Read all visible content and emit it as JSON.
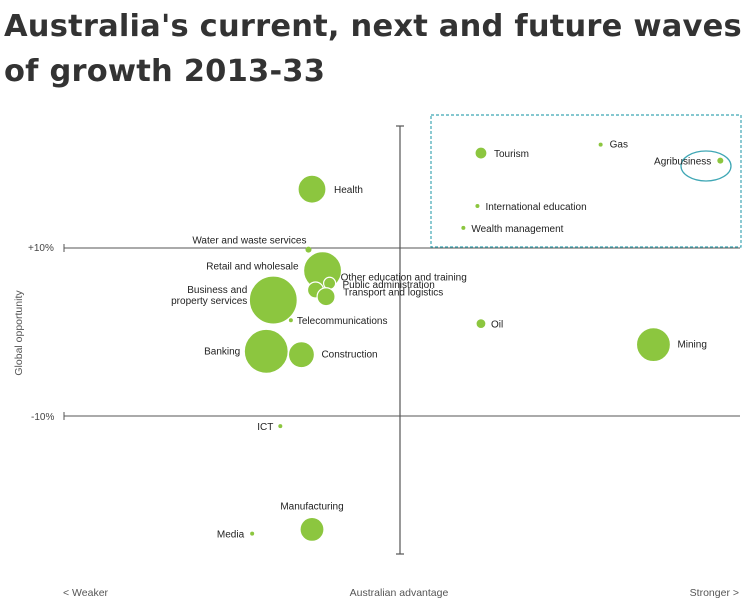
{
  "title": "Australia's current, next and future waves of growth 2013-33",
  "chart_data": {
    "type": "scatter",
    "title": "Australia's current, next and future waves of growth 2013-33",
    "xlabel": "Australian advantage",
    "ylabel": "Global opportunity",
    "x_left_label": "< Weaker",
    "x_right_label": "Stronger >",
    "yticks": [
      {
        "label": "+10%",
        "value": 10
      },
      {
        "label": "-10%",
        "value": -10
      }
    ],
    "colors": {
      "bubble": "#8cc63f",
      "bubble_edge": "#ffffff",
      "highlight": "#3fa7b5",
      "axis": "#555555"
    },
    "points": [
      {
        "name": "Health",
        "x": -25,
        "y": 17,
        "size": 14
      },
      {
        "name": "Water and waste services",
        "x": -26,
        "y": 9.8,
        "size": 3
      },
      {
        "name": "Retail and wholesale",
        "x": -22,
        "y": 7.3,
        "size": 19
      },
      {
        "name": "Other education and training",
        "x": -20,
        "y": 5.8,
        "size": 6
      },
      {
        "name": "Public administration",
        "x": -24,
        "y": 5,
        "size": 8
      },
      {
        "name": "Transport and logistics",
        "x": -21,
        "y": 4.2,
        "size": 9
      },
      {
        "name": "Business and property services",
        "x": -36,
        "y": 3.8,
        "size": 24
      },
      {
        "name": "Telecommunications",
        "x": -31,
        "y": 1.4,
        "size": 2
      },
      {
        "name": "Banking",
        "x": -38,
        "y": -2.3,
        "size": 22
      },
      {
        "name": "Construction",
        "x": -28,
        "y": -2.7,
        "size": 13
      },
      {
        "name": "ICT",
        "x": -34,
        "y": -11.2,
        "size": 2
      },
      {
        "name": "Manufacturing",
        "x": -25,
        "y": -23.5,
        "size": 12
      },
      {
        "name": "Media",
        "x": -42,
        "y": -24,
        "size": 2
      },
      {
        "name": "Tourism",
        "x": 23,
        "y": 21.3,
        "size": 6
      },
      {
        "name": "Gas",
        "x": 57,
        "y": 22.3,
        "size": 2
      },
      {
        "name": "Agribusiness",
        "x": 91,
        "y": 20.4,
        "size": 3,
        "highlighted": true
      },
      {
        "name": "International education",
        "x": 22,
        "y": 15,
        "size": 2
      },
      {
        "name": "Wealth management",
        "x": 18,
        "y": 12.4,
        "size": 2
      },
      {
        "name": "Oil",
        "x": 23,
        "y": 1,
        "size": 5
      },
      {
        "name": "Mining",
        "x": 72,
        "y": -1.5,
        "size": 17
      }
    ]
  }
}
